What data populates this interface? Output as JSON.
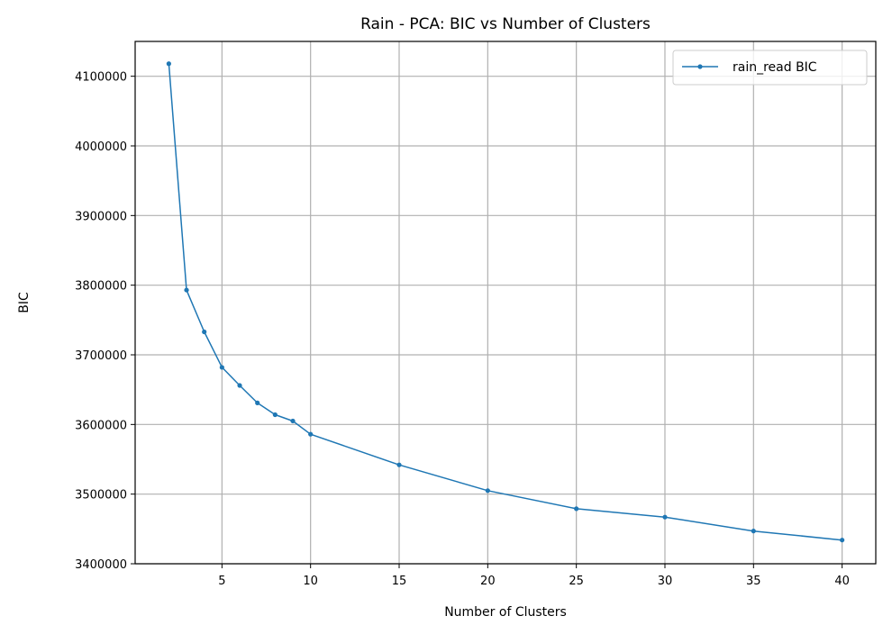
{
  "chart_data": {
    "type": "line",
    "title": "Rain - PCA: BIC vs Number of Clusters",
    "xlabel": "Number of Clusters",
    "ylabel": "BIC",
    "xlim": [
      0.1,
      41.9
    ],
    "ylim": [
      3400000,
      4150000
    ],
    "xticks": [
      5,
      10,
      15,
      20,
      25,
      30,
      35,
      40
    ],
    "yticks": [
      3400000,
      3500000,
      3600000,
      3700000,
      3800000,
      3900000,
      4000000,
      4100000
    ],
    "grid": true,
    "legend_position": "top-right",
    "series": [
      {
        "name": "rain_read BIC",
        "color": "#1f77b4",
        "marker": "circle",
        "x": [
          2,
          3,
          4,
          5,
          6,
          7,
          8,
          9,
          10,
          15,
          20,
          25,
          30,
          35,
          40
        ],
        "y": [
          4118000,
          3793000,
          3733000,
          3682000,
          3656000,
          3631000,
          3614000,
          3605000,
          3586000,
          3542000,
          3505000,
          3479000,
          3467000,
          3447000,
          3434000
        ]
      }
    ]
  }
}
